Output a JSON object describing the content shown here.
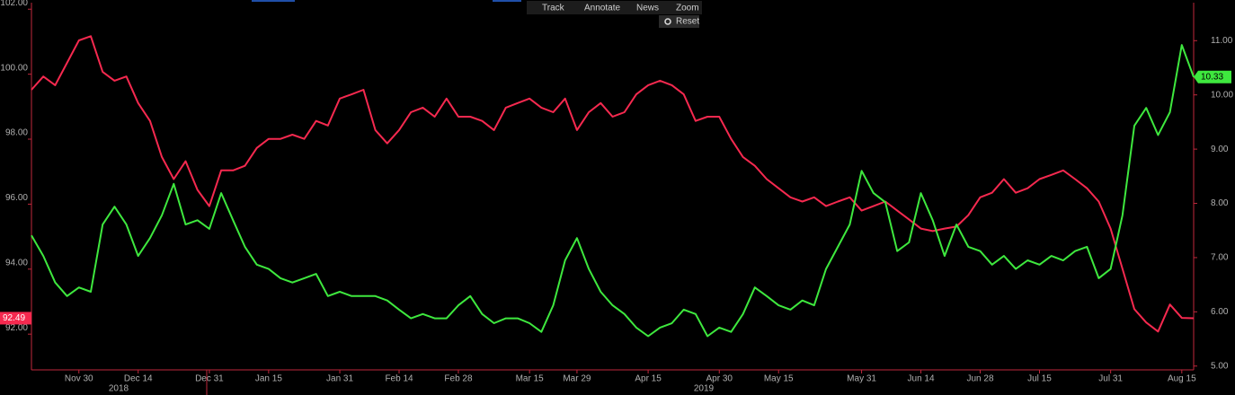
{
  "toolbar": {
    "items": [
      "Track",
      "Annotate",
      "News",
      "Zoom"
    ],
    "reset": "Reset"
  },
  "chart_data": {
    "type": "line",
    "categories": [
      null,
      null,
      null,
      null,
      "Nov 30",
      null,
      null,
      null,
      null,
      "Dec 14",
      null,
      null,
      null,
      null,
      null,
      "Dec 31",
      null,
      null,
      null,
      null,
      "Jan 15",
      null,
      null,
      null,
      null,
      null,
      "Jan 31",
      null,
      null,
      null,
      null,
      "Feb 14",
      null,
      null,
      null,
      null,
      "Feb 28",
      null,
      null,
      null,
      null,
      null,
      "Mar 15",
      null,
      null,
      null,
      "Mar 29",
      null,
      null,
      null,
      null,
      null,
      "Apr 15",
      null,
      null,
      null,
      null,
      null,
      "Apr 30",
      null,
      null,
      null,
      null,
      "May 15",
      null,
      null,
      null,
      null,
      null,
      null,
      "May 31",
      null,
      null,
      null,
      null,
      "Jun 14",
      null,
      null,
      null,
      null,
      "Jun 28",
      null,
      null,
      null,
      null,
      "Jul 15",
      null,
      null,
      null,
      null,
      null,
      "Jul 31",
      null,
      null,
      null,
      null,
      null,
      "Aug 15",
      null
    ],
    "year_labels": [
      "2018",
      "2019"
    ],
    "ylim": [
      90.9,
      102.2
    ],
    "yticks": [
      {
        "value": 92,
        "label": "92.00"
      },
      {
        "value": 94,
        "label": "94.00"
      },
      {
        "value": 96,
        "label": "96.00"
      },
      {
        "value": 98,
        "label": "98.00"
      },
      {
        "value": 100,
        "label": "100.00"
      },
      {
        "value": 102,
        "label": "102.00"
      }
    ],
    "y2lim": [
      4.93,
      11.7
    ],
    "y2ticks": [
      {
        "value": 5,
        "label": "5.00"
      },
      {
        "value": 6,
        "label": "6.00"
      },
      {
        "value": 7,
        "label": "7.00"
      },
      {
        "value": 8,
        "label": "8.00"
      },
      {
        "value": 9,
        "label": "9.00"
      },
      {
        "value": 10,
        "label": "10.00"
      },
      {
        "value": 11,
        "label": "11.00"
      }
    ],
    "series": [
      {
        "color": "#f5294f",
        "axis": "y",
        "last_label": "92.49",
        "values": [
          99.52,
          99.93,
          99.66,
          100.35,
          101.04,
          101.17,
          100.07,
          99.8,
          99.93,
          99.11,
          98.56,
          97.45,
          96.77,
          97.32,
          96.44,
          95.94,
          97.04,
          97.04,
          97.18,
          97.73,
          98.01,
          98.01,
          98.14,
          98.01,
          98.56,
          98.42,
          99.25,
          99.38,
          99.52,
          98.28,
          97.87,
          98.28,
          98.83,
          98.97,
          98.69,
          99.25,
          98.69,
          98.69,
          98.56,
          98.28,
          98.97,
          99.11,
          99.25,
          98.97,
          98.83,
          99.25,
          98.28,
          98.83,
          99.11,
          98.69,
          98.83,
          99.38,
          99.66,
          99.8,
          99.66,
          99.38,
          98.56,
          98.69,
          98.69,
          98.01,
          97.45,
          97.18,
          96.77,
          96.49,
          96.21,
          96.08,
          96.21,
          95.94,
          96.08,
          96.21,
          95.8,
          95.94,
          96.08,
          95.8,
          95.53,
          95.25,
          95.17,
          95.25,
          95.31,
          95.66,
          96.21,
          96.35,
          96.77,
          96.35,
          96.49,
          96.77,
          96.9,
          97.04,
          96.77,
          96.49,
          96.08,
          95.25,
          94.01,
          92.77,
          92.36,
          92.08,
          92.91,
          92.5,
          92.49
        ]
      },
      {
        "color": "#3ee83e",
        "axis": "y2",
        "last_label": "10.33",
        "values": [
          7.41,
          7.03,
          6.54,
          6.29,
          6.45,
          6.37,
          7.61,
          7.94,
          7.61,
          7.03,
          7.36,
          7.78,
          8.36,
          7.61,
          7.69,
          7.53,
          8.19,
          7.69,
          7.2,
          6.87,
          6.79,
          6.62,
          6.54,
          6.62,
          6.7,
          6.29,
          6.37,
          6.29,
          6.29,
          6.29,
          6.21,
          6.04,
          5.88,
          5.96,
          5.88,
          5.88,
          6.12,
          6.29,
          5.96,
          5.79,
          5.88,
          5.88,
          5.79,
          5.63,
          6.12,
          6.95,
          7.36,
          6.79,
          6.37,
          6.12,
          5.96,
          5.71,
          5.55,
          5.71,
          5.79,
          6.04,
          5.96,
          5.55,
          5.71,
          5.63,
          5.96,
          6.45,
          6.29,
          6.12,
          6.04,
          6.21,
          6.12,
          6.79,
          7.2,
          7.61,
          8.6,
          8.19,
          8.02,
          7.12,
          7.28,
          8.19,
          7.69,
          7.03,
          7.61,
          7.2,
          7.12,
          6.87,
          7.03,
          6.79,
          6.95,
          6.87,
          7.03,
          6.95,
          7.12,
          7.2,
          6.62,
          6.79,
          7.78,
          9.43,
          9.76,
          9.26,
          9.68,
          10.92,
          10.33
        ]
      }
    ]
  }
}
